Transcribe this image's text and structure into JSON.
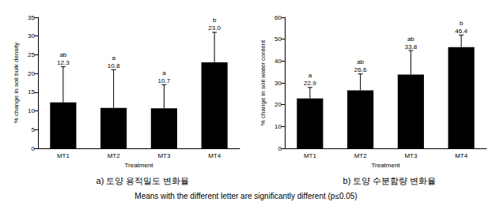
{
  "chart_data": [
    {
      "type": "bar",
      "caption": "a) 토양 용적밀도 변화율",
      "x_label": "Treatment",
      "y_label": "% change in soil bulk density",
      "categories": [
        "MT1",
        "MT2",
        "MT3",
        "MT4"
      ],
      "values": [
        12.3,
        10.8,
        10.7,
        23.0
      ],
      "value_labels": [
        "12.3",
        "10.8",
        "10.7",
        "23.0"
      ],
      "errors": [
        9.5,
        10.2,
        6.3,
        8.0
      ],
      "letters": [
        "ab",
        "a",
        "a",
        "b"
      ],
      "color": "#000000",
      "ylim": [
        0,
        35
      ],
      "yticks": [
        0,
        5,
        10,
        15,
        20,
        25,
        30,
        35
      ],
      "grid": false,
      "data_labels": true
    },
    {
      "type": "bar",
      "caption": "b) 토양 수분함량 변화율",
      "x_label": "Treatment",
      "y_label": "% change in soil water content",
      "categories": [
        "MT1",
        "MT2",
        "MT3",
        "MT4"
      ],
      "values": [
        22.9,
        26.6,
        33.8,
        46.4
      ],
      "value_labels": [
        "22.9",
        "26.6",
        "33.8",
        "46.4"
      ],
      "errors": [
        5.0,
        7.5,
        11.0,
        5.5
      ],
      "letters": [
        "a",
        "ab",
        "ab",
        "b"
      ],
      "color": "#000000",
      "ylim": [
        0,
        60
      ],
      "yticks": [
        0,
        10,
        20,
        30,
        40,
        50,
        60
      ],
      "grid": false,
      "data_labels": true
    }
  ],
  "footnote": "Means with the different letter are significantly different (p≤0.05)"
}
